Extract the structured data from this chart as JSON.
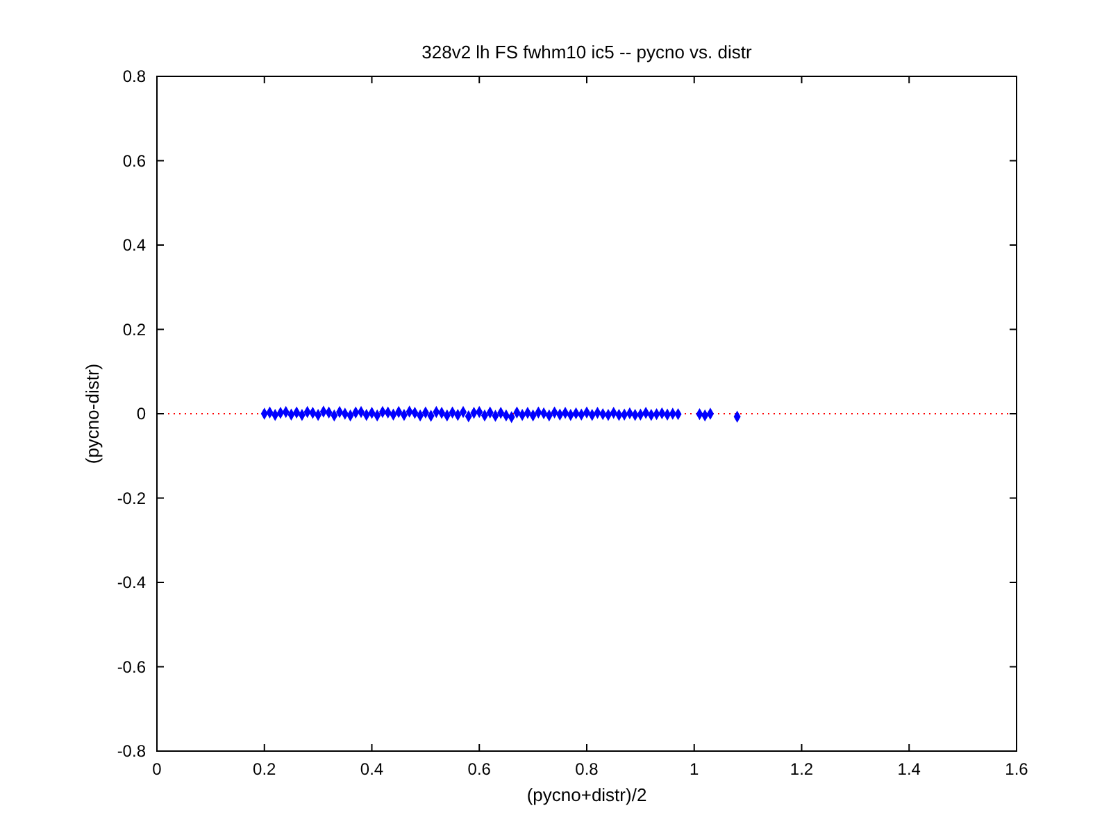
{
  "chart_data": {
    "type": "scatter",
    "title": "328v2 lh FS fwhm10 ic5 -- pycno vs. distr",
    "xlabel": "(pycno+distr)/2",
    "ylabel": "(pycno-distr)",
    "x": [
      0.2,
      0.21,
      0.22,
      0.23,
      0.24,
      0.25,
      0.26,
      0.27,
      0.28,
      0.29,
      0.3,
      0.31,
      0.32,
      0.33,
      0.34,
      0.35,
      0.36,
      0.37,
      0.38,
      0.39,
      0.4,
      0.41,
      0.42,
      0.43,
      0.44,
      0.45,
      0.46,
      0.47,
      0.48,
      0.49,
      0.5,
      0.51,
      0.52,
      0.53,
      0.54,
      0.55,
      0.56,
      0.57,
      0.58,
      0.59,
      0.6,
      0.61,
      0.62,
      0.63,
      0.64,
      0.65,
      0.66,
      0.67,
      0.68,
      0.69,
      0.7,
      0.71,
      0.72,
      0.73,
      0.74,
      0.75,
      0.76,
      0.77,
      0.78,
      0.79,
      0.8,
      0.81,
      0.82,
      0.83,
      0.84,
      0.85,
      0.86,
      0.87,
      0.88,
      0.89,
      0.9,
      0.91,
      0.92,
      0.93,
      0.94,
      0.95,
      0.96,
      0.97,
      1.01,
      1.02,
      1.03,
      1.08
    ],
    "series": [
      {
        "color": "#0000ff",
        "values": [
          0,
          0.003,
          -0.003,
          0.002,
          0.004,
          -0.002,
          0.003,
          -0.003,
          0.004,
          0.002,
          -0.003,
          0.005,
          0.003,
          -0.004,
          0.004,
          0,
          -0.004,
          0.003,
          0.004,
          -0.003,
          0.002,
          -0.004,
          0.004,
          0.003,
          -0.002,
          0.004,
          -0.003,
          0.005,
          0.002,
          -0.004,
          0.003,
          -0.005,
          0.004,
          0.002,
          -0.004,
          0.003,
          -0.003,
          0.004,
          -0.006,
          0.002,
          0.004,
          -0.004,
          0.003,
          -0.005,
          0.002,
          -0.004,
          -0.008,
          0.003,
          -0.003,
          0.002,
          -0.004,
          0.003,
          0.001,
          -0.004,
          0.003,
          -0.002,
          0.002,
          -0.003,
          0.001,
          -0.002,
          0.003,
          -0.003,
          0.002,
          -0.001,
          -0.003,
          0.002,
          -0.003,
          -0.002,
          0.001,
          -0.003,
          -0.002,
          0.002,
          -0.003,
          -0.001,
          0.001,
          -0.002,
          0,
          -0.001,
          -0.001,
          -0.004,
          0,
          -0.007
        ]
      }
    ],
    "xlim": [
      0,
      1.6
    ],
    "ylim": [
      -0.8,
      0.8
    ],
    "xticks": [
      0,
      0.2,
      0.4,
      0.6,
      0.8,
      1,
      1.2,
      1.4,
      1.6
    ],
    "yticks": [
      -0.8,
      -0.6,
      -0.4,
      -0.2,
      0,
      0.2,
      0.4,
      0.6,
      0.8
    ],
    "marker": "diamond",
    "grid": false,
    "ref_lines": [
      {
        "axis": "y",
        "value": 0,
        "color": "#ff0000",
        "line_style": "dotted"
      }
    ]
  }
}
